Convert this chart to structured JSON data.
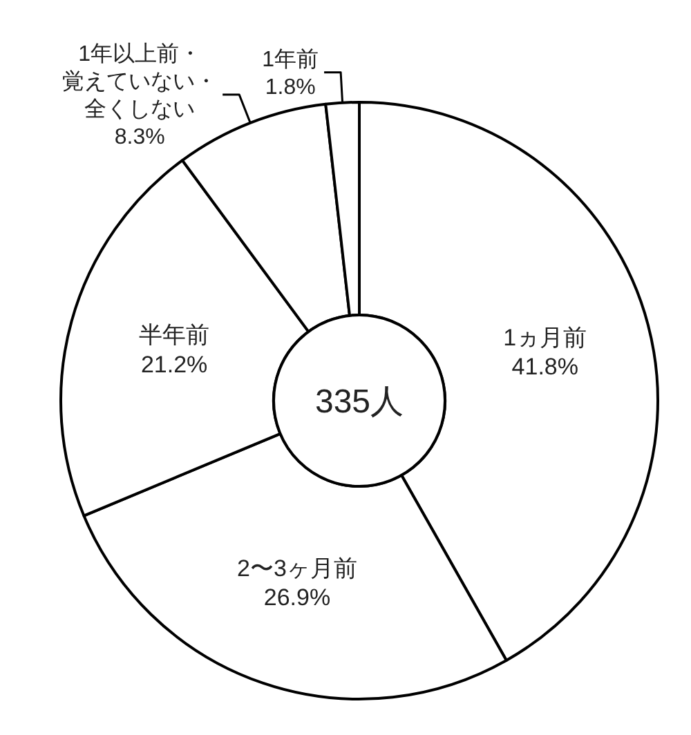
{
  "chart_data": {
    "type": "donut",
    "categories": [
      "1ヵ月前",
      "2〜3ヶ月前",
      "半年前",
      "1年以上前・覚えていない・全くしない",
      "1年前"
    ],
    "values": [
      41.8,
      26.9,
      21.2,
      8.3,
      1.8
    ],
    "value_labels": [
      "41.8%",
      "26.9%",
      "21.2%",
      "8.3%",
      "1.8%"
    ],
    "colors": [
      "#ffffff",
      "#ffffff",
      "#ffffff",
      "#ffffff",
      "#ffffff"
    ],
    "annotations": [
      "335人"
    ]
  }
}
